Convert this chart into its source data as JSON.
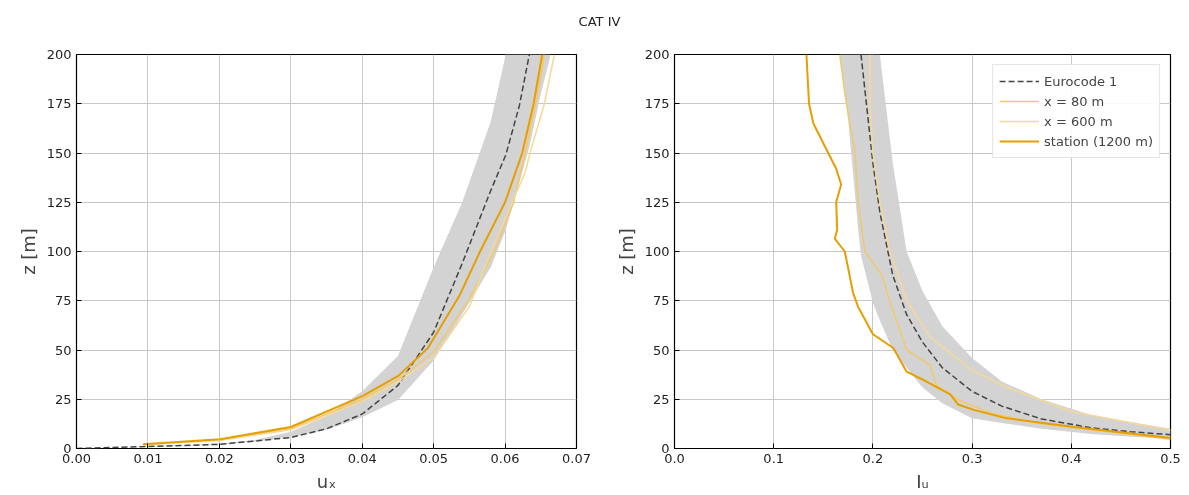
{
  "chart_data": [
    {
      "type": "line",
      "title": "CAT IV",
      "xlabel": "uₓ",
      "ylabel": "z [m]",
      "xlim": [
        0,
        0.07
      ],
      "ylim": [
        0,
        200
      ],
      "xticks": [
        {
          "value": 0,
          "label": "0.00"
        },
        {
          "value": 0.01,
          "label": "0.01"
        },
        {
          "value": 0.02,
          "label": "0.02"
        },
        {
          "value": 0.03,
          "label": "0.03"
        },
        {
          "value": 0.04,
          "label": "0.04"
        },
        {
          "value": 0.05,
          "label": "0.05"
        },
        {
          "value": 0.06,
          "label": "0.06"
        },
        {
          "value": 0.07,
          "label": "0.07"
        }
      ],
      "yticks": [
        0,
        25,
        50,
        75,
        100,
        125,
        150,
        175,
        200
      ],
      "grid": true,
      "legend": false,
      "series": [
        {
          "color": "#444444",
          "line_style": "dashed",
          "x": [
            0,
            0.01,
            0.02,
            0.025,
            0.03,
            0.035,
            0.04,
            0.045,
            0.05,
            0.054,
            0.058,
            0.0601,
            0.062,
            0.0634,
            0.065,
            0.0664
          ],
          "values": [
            0,
            1,
            2.1,
            3.8,
            5.6,
            10,
            17.5,
            32,
            59,
            94,
            131,
            149,
            174,
            200,
            null,
            null
          ],
          "lower": [
            0,
            0.8,
            2,
            3.6,
            5.7,
            9.5,
            15.8,
            24.6,
            44.7,
            68,
            92,
            111,
            135,
            153,
            180,
            200
          ],
          "upper": [
            0,
            1,
            2.5,
            4.3,
            8.5,
            16.5,
            29,
            47,
            92,
            125,
            166,
            200,
            200,
            200,
            200,
            200
          ]
        },
        {
          "color": "#f0c96e",
          "x": [
            0.0095,
            0.02,
            0.03,
            0.04,
            0.045,
            0.05,
            0.055,
            0.0585,
            0.0612,
            0.0628,
            0.0643,
            0.0655
          ],
          "values": [
            2,
            4.3,
            10,
            25,
            35,
            49,
            76,
            100,
            125,
            150,
            175,
            200
          ]
        },
        {
          "color": "#f5d898",
          "x": [
            0.0095,
            0.02,
            0.03,
            0.04,
            0.045,
            0.05,
            0.055,
            0.058,
            0.061,
            0.0628,
            0.0635,
            0.0655,
            0.0669
          ],
          "values": [
            2,
            4,
            9.5,
            24,
            34,
            46,
            72,
            100,
            125,
            140,
            150,
            175,
            200
          ]
        },
        {
          "color": "#e69f00",
          "x": [
            0.0093,
            0.0201,
            0.03,
            0.0401,
            0.0451,
            0.0492,
            0.0536,
            0.0565,
            0.06,
            0.0624,
            0.064,
            0.0652
          ],
          "values": [
            2.1,
            4.7,
            10.9,
            26.7,
            37,
            51,
            77.5,
            100,
            125,
            150,
            175,
            200
          ]
        }
      ]
    },
    {
      "type": "line",
      "xlabel": "Iᵤ",
      "ylabel": "z [m]",
      "xlim": [
        0,
        0.5
      ],
      "ylim": [
        0,
        200
      ],
      "xticks": [
        {
          "value": 0,
          "label": "0.0"
        },
        {
          "value": 0.1,
          "label": "0.1"
        },
        {
          "value": 0.2,
          "label": "0.2"
        },
        {
          "value": 0.3,
          "label": "0.3"
        },
        {
          "value": 0.4,
          "label": "0.4"
        },
        {
          "value": 0.5,
          "label": "0.5"
        }
      ],
      "yticks": [
        0,
        25,
        50,
        75,
        100,
        125,
        150,
        175,
        200
      ],
      "grid": true,
      "legend": "top right",
      "series": [
        {
          "name": "Eurocode 1",
          "color": "#444444",
          "line_style": "dashed",
          "x": [
            0.1666,
            0.175,
            0.185,
            0.188,
            0.2,
            0.207,
            0.22,
            0.234,
            0.25,
            0.27,
            0.3,
            0.33,
            0.37,
            0.42,
            0.46,
            0.5
          ],
          "values": [
            null,
            null,
            null,
            200,
            145,
            120,
            88,
            68,
            54,
            41,
            29,
            21.5,
            15,
            10.5,
            8.5,
            7
          ],
          "lower": [
            200,
            167,
            112,
            98,
            74,
            65,
            50,
            41,
            31,
            23,
            15.4,
            13,
            10,
            7.4,
            6,
            5
          ],
          "upper": [
            200,
            200,
            200,
            200,
            200,
            200,
            145,
            100,
            80,
            62,
            46,
            34,
            25,
            17,
            13.5,
            10
          ]
        },
        {
          "name": "x = 80 m",
          "color": "#f0c96e",
          "x": [
            0.5,
            0.369,
            0.318,
            0.285,
            0.264,
            0.2577,
            0.234,
            0.217,
            0.209,
            0.192,
            0.185,
            0.182,
            0.1717,
            0.1666
          ],
          "values": [
            4.7,
            12.6,
            18,
            25,
            32,
            42.5,
            50,
            75,
            88,
            100,
            125,
            150,
            180,
            200
          ]
        },
        {
          "name": "x = 600 m",
          "color": "#f5d898",
          "x": [
            0.5,
            0.4,
            0.335,
            0.3,
            0.2577,
            0.234,
            0.217,
            0.207,
            0.2,
            0.197,
            0.197
          ],
          "values": [
            9.1,
            18.8,
            31,
            39.8,
            56.5,
            75,
            100,
            125,
            150,
            175,
            200
          ]
        },
        {
          "name": "station (1200 m)",
          "color": "#e69f00",
          "x": [
            0.5,
            0.403,
            0.335,
            0.3015,
            0.286,
            0.278,
            0.254,
            0.234,
            0.2206,
            0.2,
            0.185,
            0.18,
            0.1717,
            0.1616,
            0.164,
            0.163,
            0.168,
            0.163,
            0.154,
            0.14,
            0.1356,
            0.133
          ],
          "values": [
            5.3,
            10.9,
            15.3,
            19.6,
            22.3,
            27.5,
            34,
            39,
            51,
            58,
            72,
            79,
            100,
            106.5,
            111,
            125,
            134,
            142,
            151,
            165,
            175,
            200
          ]
        }
      ]
    }
  ]
}
